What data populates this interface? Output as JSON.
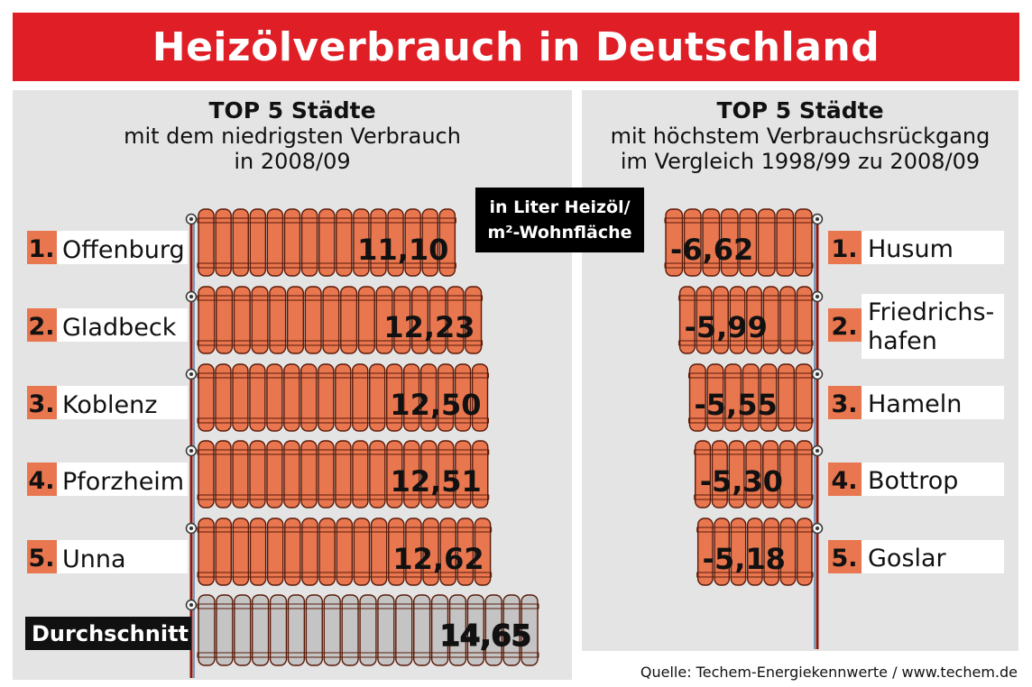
{
  "title": "Heizölverbrauch in Deutschland",
  "left_heading": [
    "TOP 5 Städte",
    "mit dem niedrigsten Verbrauch",
    "in 2008/09"
  ],
  "right_heading": [
    "TOP 5 Städte",
    "mit höchstem Verbrauchsrückgang",
    "im Vergleich 1998/99 zu 2008/09"
  ],
  "unit": [
    "in Liter Heizöl/",
    "m²-Wohnfläche"
  ],
  "source": "Quelle: Techem-Energiekennwerte / www.techem.de",
  "colors": {
    "banner": "#e01e26",
    "radiator": "#e8764f",
    "average_radiator": "#c4c4c4",
    "rank_box": "#e8764f",
    "panel": "#e4e4e4"
  },
  "chart_data": [
    {
      "type": "bar",
      "orientation": "horizontal",
      "title": "TOP 5 Städte mit dem niedrigsten Verbrauch in 2008/09",
      "unit": "in Liter Heizöl/m²-Wohnfläche",
      "ranks": [
        "1.",
        "2.",
        "3.",
        "4.",
        "5."
      ],
      "categories": [
        "Offenburg",
        "Gladbeck",
        "Koblenz",
        "Pforzheim",
        "Unna"
      ],
      "values": [
        11.1,
        12.23,
        12.5,
        12.51,
        12.62
      ],
      "value_labels": [
        "11,10",
        "12,23",
        "12,50",
        "12,51",
        "12,62"
      ],
      "average": {
        "label": "Durchschnitt",
        "value": 14.65,
        "value_label": "14,65"
      }
    },
    {
      "type": "bar",
      "orientation": "horizontal",
      "title": "TOP 5 Städte mit höchstem Verbrauchsrückgang im Vergleich 1998/99 zu 2008/09",
      "ranks": [
        "1.",
        "2.",
        "3.",
        "4.",
        "5."
      ],
      "categories": [
        [
          "Husum"
        ],
        [
          "Friedrichs-",
          "hafen"
        ],
        [
          "Hameln"
        ],
        [
          "Bottrop"
        ],
        [
          "Goslar"
        ]
      ],
      "values": [
        -6.62,
        -5.99,
        -5.55,
        -5.3,
        -5.18
      ],
      "value_labels": [
        "-6,62",
        "-5,99",
        "-5,55",
        "-5,30",
        "-5,18"
      ]
    }
  ]
}
